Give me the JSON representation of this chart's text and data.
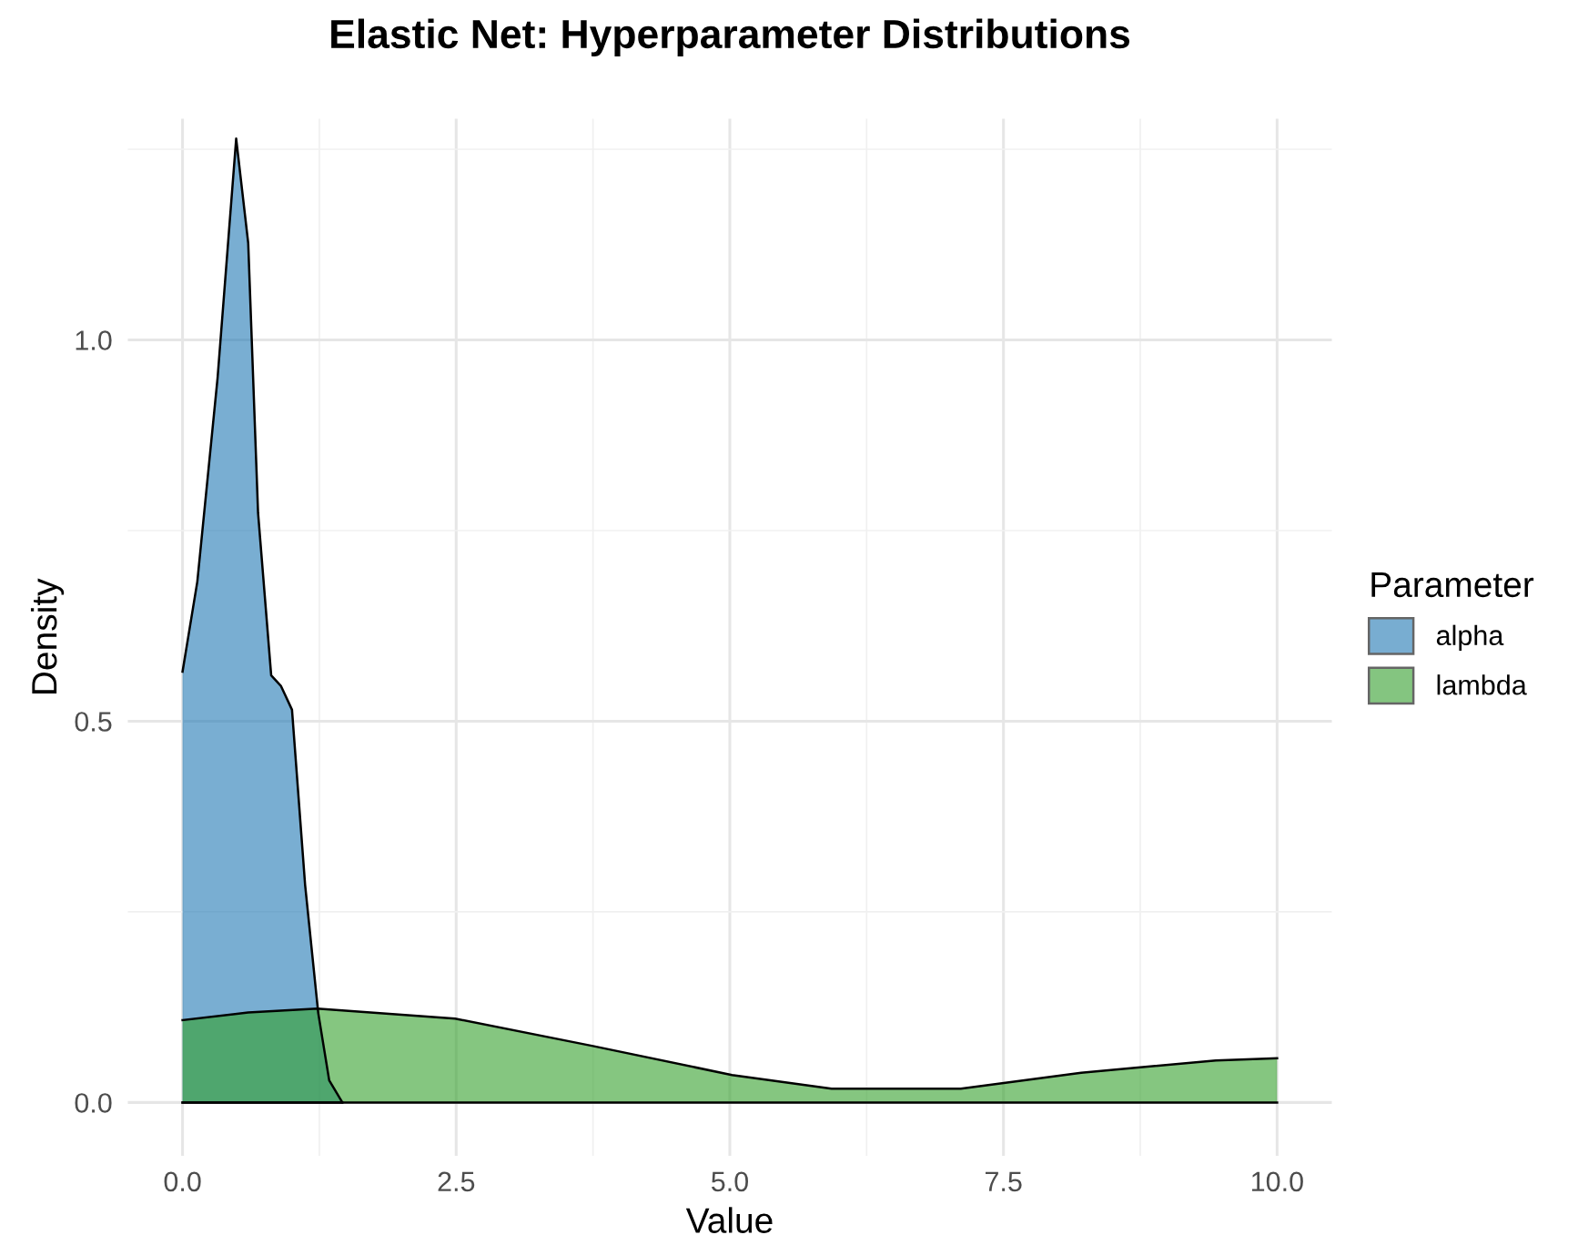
{
  "chart_data": {
    "type": "area",
    "title": "Elastic Net: Hyperparameter Distributions",
    "xlabel": "Value",
    "ylabel": "Density",
    "legend_title": "Parameter",
    "legend": "right",
    "grid": true,
    "xlim": [
      -0.5,
      10.5
    ],
    "ylim": [
      -0.07,
      1.29
    ],
    "xticks": [
      {
        "value": 0,
        "label": "0.0"
      },
      {
        "value": 2.5,
        "label": "2.5"
      },
      {
        "value": 5,
        "label": "5.0"
      },
      {
        "value": 7.5,
        "label": "7.5"
      },
      {
        "value": 10,
        "label": "10.0"
      }
    ],
    "yticks": [
      {
        "value": 0,
        "label": "0.0"
      },
      {
        "value": 0.5,
        "label": "0.5"
      },
      {
        "value": 1,
        "label": "1.0"
      }
    ],
    "series": [
      {
        "name": "alpha",
        "color": "#1f78b4",
        "x": [
          0,
          0.135,
          0.32,
          0.49,
          0.6,
          0.69,
          0.81,
          0.9,
          1.0,
          1.12,
          1.24,
          1.34,
          1.46
        ],
        "values": [
          0.565,
          0.683,
          0.95,
          1.264,
          1.127,
          0.773,
          0.56,
          0.546,
          0.515,
          0.285,
          0.117,
          0.029,
          0
        ]
      },
      {
        "name": "lambda",
        "color": "#33a02c",
        "x": [
          0,
          0.6,
          1.23,
          2.49,
          3.75,
          5.02,
          5.93,
          7.11,
          8.21,
          9.44,
          10
        ],
        "values": [
          0.108,
          0.118,
          0.123,
          0.11,
          0.074,
          0.036,
          0.018,
          0.018,
          0.039,
          0.055,
          0.058
        ]
      }
    ]
  }
}
